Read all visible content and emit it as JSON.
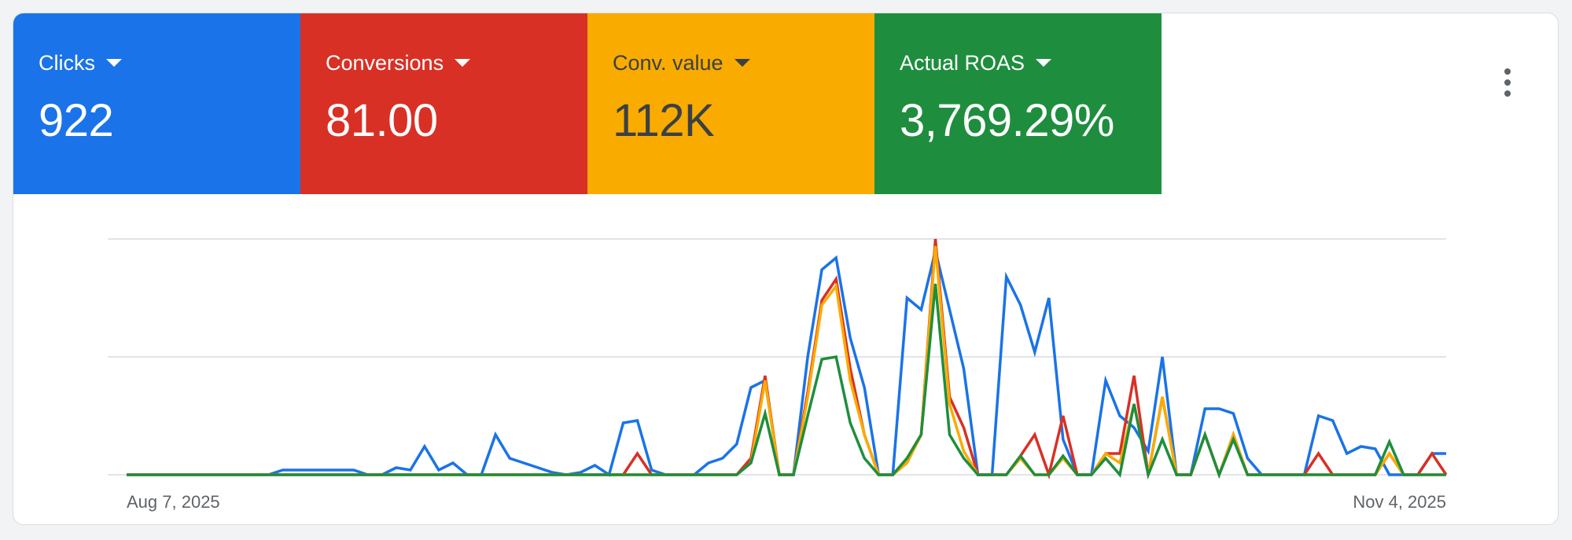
{
  "metrics": [
    {
      "label": "Clicks",
      "value": "922",
      "bg": "#1a73e8",
      "fg": "#ffffff"
    },
    {
      "label": "Conversions",
      "value": "81.00",
      "bg": "#d93025",
      "fg": "#ffffff"
    },
    {
      "label": "Conv. value",
      "value": "112K",
      "bg": "#f9ab00",
      "fg": "#3c4043"
    },
    {
      "label": "Actual ROAS",
      "value": "3,769.29%",
      "bg": "#1e8e3e",
      "fg": "#ffffff"
    }
  ],
  "more_icon": "more-vert-icon",
  "chart_data": {
    "type": "line",
    "x_start_label": "Aug 7, 2025",
    "x_end_label": "Nov 4, 2025",
    "xlabel": "",
    "ylabel": "",
    "ylim": [
      0,
      100
    ],
    "gridlines": [
      0,
      50,
      100
    ],
    "grid": true,
    "series": [
      {
        "color": "#1a73e8",
        "values": [
          0,
          0,
          0,
          0,
          0,
          0,
          0,
          0,
          0,
          0,
          0,
          2,
          2,
          2,
          2,
          2,
          2,
          0,
          0,
          3,
          2,
          12,
          2,
          5,
          0,
          0,
          17,
          7,
          5,
          3,
          1,
          0,
          1,
          4,
          0,
          22,
          23,
          2,
          0,
          0,
          0,
          5,
          7,
          13,
          37,
          40,
          0,
          0,
          50,
          87,
          92,
          58,
          37,
          0,
          0,
          75,
          70,
          95,
          70,
          45,
          0,
          0,
          84,
          72,
          52,
          75,
          15,
          0,
          0,
          40,
          25,
          20,
          10,
          50,
          0,
          0,
          28,
          28,
          26,
          7,
          0,
          0,
          0,
          0,
          25,
          23,
          9,
          12,
          11,
          0,
          0,
          0,
          9,
          9
        ]
      },
      {
        "color": "#d93025",
        "values": [
          0,
          0,
          0,
          0,
          0,
          0,
          0,
          0,
          0,
          0,
          0,
          0,
          0,
          0,
          0,
          0,
          0,
          0,
          0,
          0,
          0,
          0,
          0,
          0,
          0,
          0,
          0,
          0,
          0,
          0,
          0,
          0,
          0,
          0,
          0,
          0,
          9,
          0,
          0,
          0,
          0,
          0,
          0,
          0,
          7,
          42,
          0,
          0,
          35,
          74,
          83,
          45,
          17,
          0,
          0,
          7,
          17,
          100,
          33,
          20,
          0,
          0,
          0,
          8,
          17,
          0,
          25,
          0,
          0,
          9,
          9,
          42,
          0,
          33,
          0,
          0,
          17,
          0,
          17,
          0,
          0,
          0,
          0,
          0,
          9,
          0,
          0,
          0,
          0,
          9,
          0,
          0,
          9,
          0
        ]
      },
      {
        "color": "#f9ab00",
        "values": [
          0,
          0,
          0,
          0,
          0,
          0,
          0,
          0,
          0,
          0,
          0,
          0,
          0,
          0,
          0,
          0,
          0,
          0,
          0,
          0,
          0,
          0,
          0,
          0,
          0,
          0,
          0,
          0,
          0,
          0,
          0,
          0,
          0,
          0,
          0,
          0,
          0,
          0,
          0,
          0,
          0,
          0,
          0,
          0,
          5,
          40,
          0,
          0,
          33,
          72,
          80,
          40,
          17,
          0,
          0,
          5,
          17,
          97,
          30,
          10,
          0,
          0,
          0,
          7,
          0,
          0,
          7,
          0,
          0,
          9,
          5,
          30,
          0,
          33,
          0,
          0,
          17,
          0,
          17,
          0,
          0,
          0,
          0,
          0,
          0,
          0,
          0,
          0,
          0,
          9,
          0,
          0,
          0,
          0
        ]
      },
      {
        "color": "#1e8e3e",
        "values": [
          0,
          0,
          0,
          0,
          0,
          0,
          0,
          0,
          0,
          0,
          0,
          0,
          0,
          0,
          0,
          0,
          0,
          0,
          0,
          0,
          0,
          0,
          0,
          0,
          0,
          0,
          0,
          0,
          0,
          0,
          0,
          0,
          0,
          0,
          0,
          0,
          0,
          0,
          0,
          0,
          0,
          0,
          0,
          0,
          5,
          26,
          0,
          0,
          25,
          49,
          50,
          22,
          7,
          0,
          0,
          7,
          17,
          81,
          17,
          7,
          0,
          0,
          0,
          8,
          0,
          0,
          8,
          0,
          0,
          7,
          0,
          30,
          0,
          15,
          0,
          0,
          17,
          0,
          15,
          0,
          0,
          0,
          0,
          0,
          0,
          0,
          0,
          0,
          0,
          14,
          0,
          0,
          0,
          0
        ]
      }
    ]
  }
}
